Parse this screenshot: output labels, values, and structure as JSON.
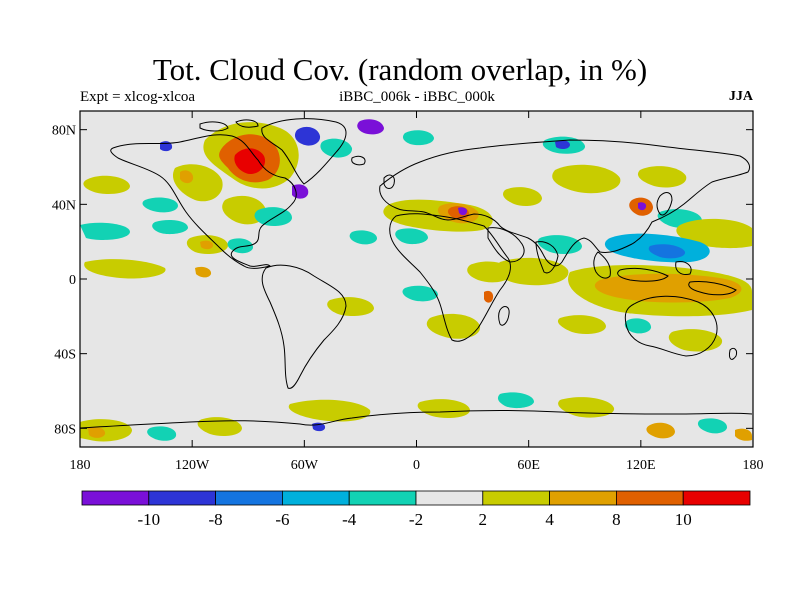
{
  "title": "Tot. Cloud Cov. (random overlap, in %)",
  "subtitle_left": "Expt = xlcog-xlcoa",
  "subtitle_center": "iBBC_006k - iBBC_000k",
  "subtitle_right": "JJA",
  "lat_ticks": [
    {
      "value": 80,
      "label": "80N"
    },
    {
      "value": 40,
      "label": "40N"
    },
    {
      "value": 0,
      "label": "0"
    },
    {
      "value": -40,
      "label": "40S"
    },
    {
      "value": -80,
      "label": "80S"
    }
  ],
  "lon_ticks": [
    {
      "value": -180,
      "label": "180"
    },
    {
      "value": -120,
      "label": "120W"
    },
    {
      "value": -60,
      "label": "60W"
    },
    {
      "value": 0,
      "label": "0"
    },
    {
      "value": 60,
      "label": "60E"
    },
    {
      "value": 120,
      "label": "120E"
    },
    {
      "value": 180,
      "label": "180"
    }
  ],
  "colorbar": {
    "colors": [
      "#7a10d8",
      "#2d34d6",
      "#1474e0",
      "#00b0dc",
      "#12d2b4",
      "#e6e6e6",
      "#c8cc00",
      "#e0a000",
      "#e06000",
      "#e80000"
    ],
    "labels": [
      "-10",
      "-8",
      "-6",
      "-4",
      "-2",
      "2",
      "4",
      "8",
      "10"
    ]
  },
  "colors": {
    "background_field": "#e6e6e6",
    "coastline": "#000000"
  }
}
